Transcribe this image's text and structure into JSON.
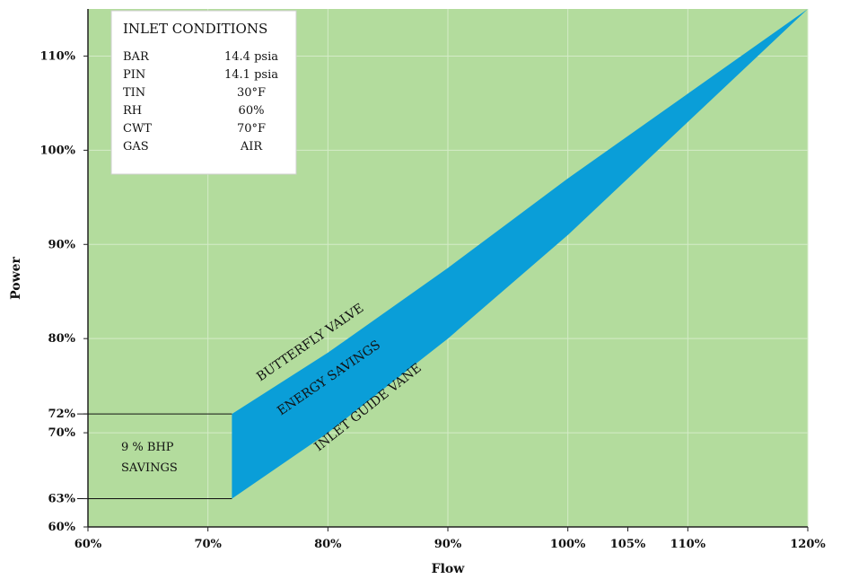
{
  "chart_data": {
    "type": "area",
    "title": "",
    "xlabel": "Flow",
    "ylabel": "Power",
    "xlim": [
      60,
      120
    ],
    "ylim": [
      60,
      115
    ],
    "x_ticks": [
      {
        "value": 60,
        "label": "60%"
      },
      {
        "value": 70,
        "label": "70%"
      },
      {
        "value": 80,
        "label": "80%"
      },
      {
        "value": 90,
        "label": "90%"
      },
      {
        "value": 100,
        "label": "100%"
      },
      {
        "value": 105,
        "label": "105%"
      },
      {
        "value": 110,
        "label": "110%"
      },
      {
        "value": 120,
        "label": "120%"
      }
    ],
    "y_ticks": [
      {
        "value": 60,
        "label": "60%"
      },
      {
        "value": 63,
        "label": "63%"
      },
      {
        "value": 70,
        "label": "70%"
      },
      {
        "value": 72,
        "label": "72%"
      },
      {
        "value": 80,
        "label": "80%"
      },
      {
        "value": 90,
        "label": "90%"
      },
      {
        "value": 100,
        "label": "100%"
      },
      {
        "value": 110,
        "label": "110%"
      }
    ],
    "grid": true,
    "series": [
      {
        "name": "BUTTERFLY VALVE",
        "x": [
          72,
          80,
          90,
          100,
          110,
          120
        ],
        "y": [
          72,
          78.5,
          87.5,
          97,
          106,
          115
        ]
      },
      {
        "name": "INLET GUIDE VANE",
        "x": [
          72,
          80,
          90,
          100,
          110,
          120
        ],
        "y": [
          63,
          70,
          80,
          91,
          103,
          115
        ]
      }
    ],
    "fill_label": "ENERGY SAVINGS",
    "reference_lines": [
      {
        "y": 72,
        "x_end": 72
      },
      {
        "y": 63,
        "x_end": 72
      }
    ],
    "annotations": {
      "savings_line1": "9 % BHP",
      "savings_line2": "SAVINGS"
    },
    "inlet_conditions": {
      "title": "INLET CONDITIONS",
      "rows": [
        {
          "name": "BAR",
          "value": "14.4 psia"
        },
        {
          "name": "PIN",
          "value": "14.1 psia"
        },
        {
          "name": "TIN",
          "value": "30°F"
        },
        {
          "name": "RH",
          "value": "60%"
        },
        {
          "name": "CWT",
          "value": "70°F"
        },
        {
          "name": "GAS",
          "value": "AIR"
        }
      ]
    },
    "colors": {
      "plot_background": "#b3dc9d",
      "band": "#0a9ed8",
      "grid": "#d4ebc8"
    }
  }
}
